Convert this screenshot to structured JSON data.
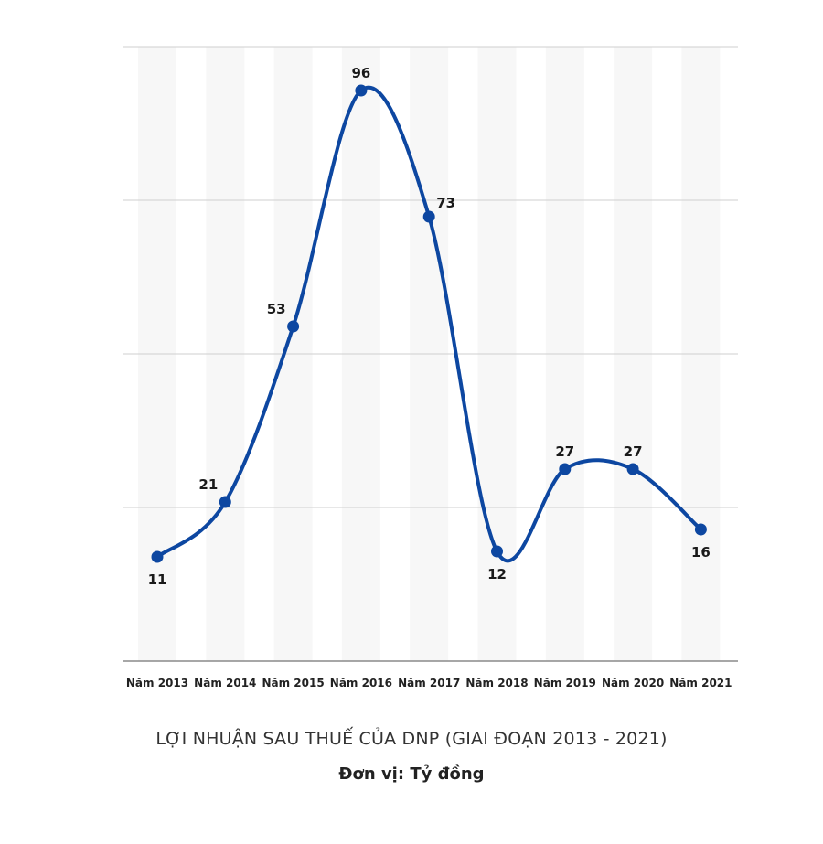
{
  "chart_data": {
    "type": "line",
    "title": "LỢI NHUẬN SAU THUẾ CỦA DNP (GIAI ĐOẠN 2013 - 2021)",
    "subtitle": "Đơn vị: Tỷ đồng",
    "categories": [
      "Năm 2013",
      "Năm 2014",
      "Năm 2015",
      "Năm 2016",
      "Năm 2017",
      "Năm 2018",
      "Năm 2019",
      "Năm 2020",
      "Năm 2021"
    ],
    "series": [
      {
        "values": [
          11,
          21,
          53,
          96,
          73,
          12,
          27,
          27,
          16
        ]
      }
    ],
    "xlabel": "",
    "ylabel": "",
    "ylim": [
      -8,
      104
    ],
    "grid": true,
    "smooth": true,
    "color": "#0d47a1"
  }
}
